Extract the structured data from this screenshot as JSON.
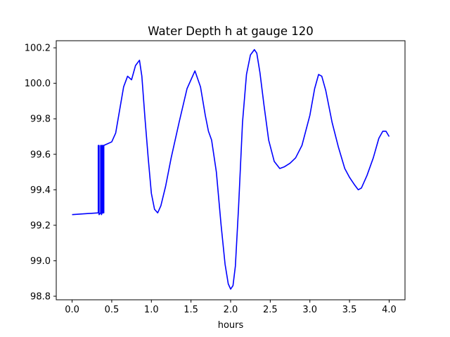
{
  "chart_data": {
    "type": "line",
    "title": "Water Depth h at gauge 120",
    "xlabel": "hours",
    "ylabel": "",
    "xlim": [
      -0.2,
      4.2
    ],
    "ylim": [
      98.78,
      100.24
    ],
    "xticks": [
      0.0,
      0.5,
      1.0,
      1.5,
      2.0,
      2.5,
      3.0,
      3.5,
      4.0
    ],
    "xtick_labels": [
      "0.0",
      "0.5",
      "1.0",
      "1.5",
      "2.0",
      "2.5",
      "3.0",
      "3.5",
      "4.0"
    ],
    "yticks": [
      98.8,
      99.0,
      99.2,
      99.4,
      99.6,
      99.8,
      100.0,
      100.2
    ],
    "ytick_labels": [
      "98.8",
      "99.0",
      "99.2",
      "99.4",
      "99.6",
      "99.8",
      "100.0",
      "100.2"
    ],
    "grid": false,
    "legend": "none",
    "series": [
      {
        "color": "#0000ff",
        "x": [
          0.0,
          0.33,
          0.33,
          0.34,
          0.34,
          0.36,
          0.36,
          0.37,
          0.37,
          0.38,
          0.38,
          0.39,
          0.39,
          0.4,
          0.4,
          0.45,
          0.5,
          0.55,
          0.6,
          0.65,
          0.7,
          0.75,
          0.8,
          0.85,
          0.88,
          0.92,
          0.96,
          1.0,
          1.04,
          1.08,
          1.12,
          1.18,
          1.25,
          1.35,
          1.45,
          1.55,
          1.62,
          1.68,
          1.72,
          1.76,
          1.82,
          1.88,
          1.93,
          1.97,
          2.0,
          2.03,
          2.06,
          2.1,
          2.15,
          2.2,
          2.25,
          2.3,
          2.33,
          2.37,
          2.42,
          2.48,
          2.55,
          2.62,
          2.68,
          2.75,
          2.82,
          2.9,
          3.0,
          3.06,
          3.11,
          3.15,
          3.2,
          3.28,
          3.36,
          3.44,
          3.5,
          3.56,
          3.61,
          3.65,
          3.72,
          3.8,
          3.87,
          3.92,
          3.96,
          4.0
        ],
        "y": [
          99.26,
          99.27,
          99.65,
          99.65,
          99.26,
          99.27,
          99.65,
          99.65,
          99.26,
          99.27,
          99.65,
          99.65,
          99.27,
          99.27,
          99.65,
          99.66,
          99.67,
          99.72,
          99.85,
          99.98,
          100.04,
          100.02,
          100.1,
          100.13,
          100.04,
          99.8,
          99.58,
          99.38,
          99.29,
          99.27,
          99.31,
          99.42,
          99.58,
          99.78,
          99.97,
          100.07,
          99.98,
          99.82,
          99.73,
          99.68,
          99.5,
          99.2,
          98.98,
          98.87,
          98.84,
          98.86,
          98.97,
          99.3,
          99.78,
          100.05,
          100.16,
          100.19,
          100.17,
          100.06,
          99.88,
          99.68,
          99.56,
          99.52,
          99.53,
          99.55,
          99.58,
          99.65,
          99.82,
          99.97,
          100.05,
          100.04,
          99.96,
          99.78,
          99.64,
          99.52,
          99.47,
          99.43,
          99.4,
          99.41,
          99.48,
          99.58,
          99.69,
          99.73,
          99.73,
          99.7
        ]
      }
    ]
  }
}
